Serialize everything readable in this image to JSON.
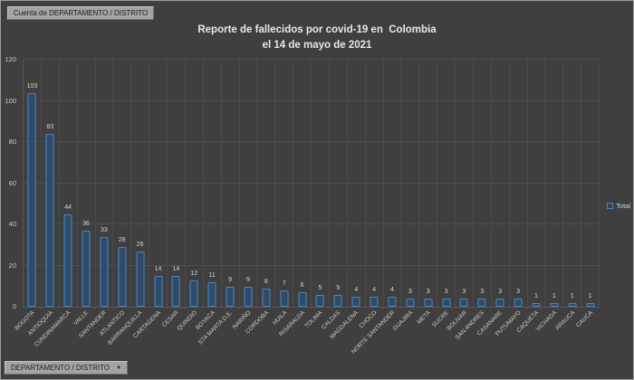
{
  "window": {
    "pivot_field_button": "Cuenta de DEPARTAMENTO / DISTRITO",
    "axis_field_button": "DEPARTAMENTO / DISTRITO",
    "dropdown_arrow": "▼"
  },
  "chart_data": {
    "type": "bar",
    "title_line1": "Reporte de fallecidos por covid-19 en  Colombia",
    "title_line2": "el 14 de mayo de 2021",
    "series_name": "Total",
    "legend_position": "right",
    "grid": true,
    "ylim": [
      0,
      120
    ],
    "yticks": [
      0,
      20,
      40,
      60,
      80,
      100,
      120
    ],
    "categories": [
      "BOGOTA",
      "ANTIOQUIA",
      "CUNDINAMARCA",
      "VALLE",
      "SANTANDER",
      "ATLANTICO",
      "BARRANQUILLA",
      "CARTAGENA",
      "CESAR",
      "QUINDIO",
      "BOYACA",
      "STA MARTA D.E.",
      "NARIÑO",
      "CORDOBA",
      "HUILA",
      "RISARALDA",
      "TOLIMA",
      "CALDAS",
      "MAGDALENA",
      "CHOCO",
      "NORTE SANTANDER",
      "GUAJIRA",
      "META",
      "SUCRE",
      "BOLIVAR",
      "SAN ANDRES",
      "CASANARE",
      "PUTUMAYO",
      "CAQUETA",
      "VICHADA",
      "ARAUCA",
      "CAUCA"
    ],
    "values": [
      103,
      83,
      44,
      36,
      33,
      28,
      26,
      14,
      14,
      12,
      11,
      9,
      9,
      8,
      7,
      6,
      5,
      5,
      4,
      4,
      4,
      3,
      3,
      3,
      3,
      3,
      3,
      3,
      1,
      1,
      1,
      1
    ],
    "colors": {
      "background": "#3f3f3f",
      "bar_fill": "#2d4b6a",
      "bar_border": "#4e84bd",
      "gridline": "#4d4d4d",
      "text": "#d4d4d4"
    }
  }
}
